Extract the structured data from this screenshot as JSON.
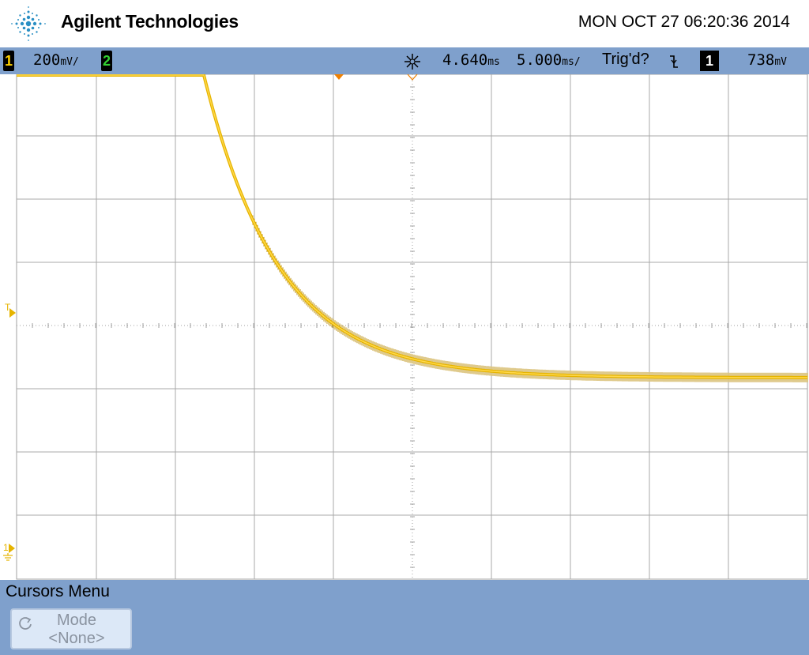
{
  "header": {
    "brand": "Agilent Technologies",
    "datetime": "MON OCT 27 06:20:36 2014"
  },
  "statusbar": {
    "ch1_number": "1",
    "ch1_scale": "200",
    "ch1_unit": "mV/",
    "ch2_number": "2",
    "acq_icon": "asterisk-acquire-icon",
    "delay": "4.640",
    "delay_unit": "ms",
    "timebase": "5.000",
    "timebase_unit": "ms/",
    "trigger_status": "Trig'd?",
    "trigger_slope_icon": "falling-edge-icon",
    "trigger_source": "1",
    "trigger_level": "738",
    "trigger_level_unit": "mV"
  },
  "markers": {
    "trigger_level_marker": "T",
    "ground_marker": "1"
  },
  "menu": {
    "title": "Cursors Menu",
    "softkey_label": "Mode",
    "softkey_value": "<None>"
  },
  "colors": {
    "ch1": "#e6b400",
    "ch2": "#33d133",
    "statusbar": "#7fa0cc",
    "grid": "#a0a0a0"
  }
}
